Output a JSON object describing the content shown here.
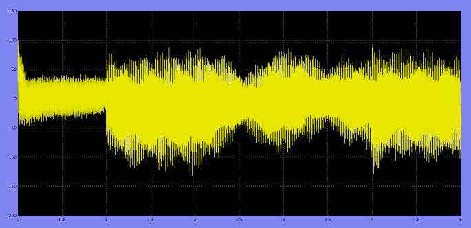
{
  "window": {
    "frame_color": "#7f84ee",
    "plot_background": "#000000",
    "grid_color": "#8a8a8a",
    "trace_color": "#e6e600"
  },
  "chart_data": {
    "type": "line",
    "title": "",
    "xlabel": "",
    "ylabel": "",
    "xlim": [
      0,
      5
    ],
    "ylim": [
      -200,
      150
    ],
    "grid": true,
    "x_ticks": [
      "0",
      "0.5",
      "1",
      "1.5",
      "2",
      "2.5",
      "3",
      "3.5",
      "4",
      "4.5",
      "5"
    ],
    "y_ticks": [
      "150",
      "100",
      "50",
      "0",
      "-50",
      "-100",
      "-150",
      "-200"
    ],
    "series": [
      {
        "color": "#e6e600",
        "envelope": {
          "x": [
            0,
            0.1,
            0.3,
            0.5,
            0.7,
            0.9,
            0.99,
            1.0,
            1.2,
            1.5,
            1.8,
            2.0,
            2.2,
            2.4,
            2.55,
            2.7,
            2.9,
            3.1,
            3.3,
            3.5,
            3.7,
            3.9,
            3.99,
            4.0,
            4.2,
            4.4,
            4.6,
            4.8,
            5.0
          ],
          "max": [
            112,
            45,
            45,
            45,
            45,
            45,
            40,
            85,
            92,
            95,
            97,
            98,
            95,
            78,
            45,
            65,
            100,
            95,
            85,
            60,
            85,
            82,
            80,
            112,
            95,
            97,
            95,
            92,
            90
          ],
          "min": [
            -55,
            -55,
            -42,
            -40,
            -38,
            -35,
            -25,
            -95,
            -125,
            -135,
            -135,
            -140,
            -125,
            -90,
            -60,
            -85,
            -115,
            -100,
            -80,
            -55,
            -90,
            -95,
            -100,
            -150,
            -118,
            -115,
            -118,
            -120,
            -112
          ]
        }
      }
    ]
  }
}
